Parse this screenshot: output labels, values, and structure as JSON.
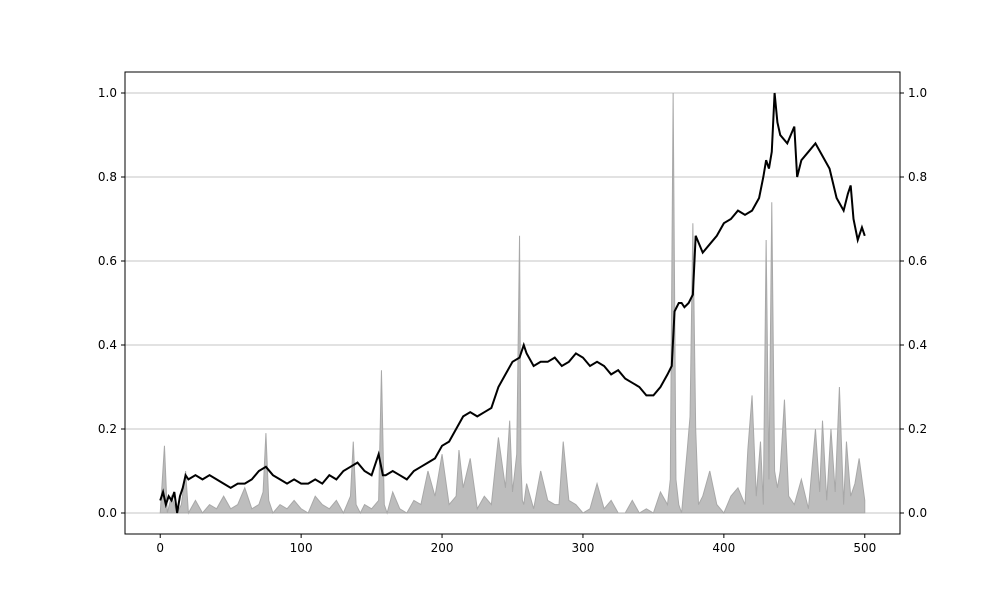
{
  "chart_data": {
    "type": "line",
    "title": "",
    "xlabel": "",
    "ylabel": "",
    "xlim": [
      -25,
      525
    ],
    "ylim": [
      -0.05,
      1.05
    ],
    "x_ticks": [
      0,
      100,
      200,
      300,
      400,
      500
    ],
    "x_tick_labels": [
      "0",
      "100",
      "200",
      "300",
      "400",
      "500"
    ],
    "y_ticks": [
      0.0,
      0.2,
      0.4,
      0.6,
      0.8,
      1.0
    ],
    "y_tick_labels": [
      "0.0",
      "0.2",
      "0.4",
      "0.6",
      "0.8",
      "1.0"
    ],
    "right_y_tick_labels": [
      "0.0",
      "0.2",
      "0.4",
      "0.6",
      "0.8",
      "1.0"
    ],
    "grid": "horizontal",
    "colors": {
      "line": "#000000",
      "area": "#bdbdbd",
      "area_edge": "#a8a8a8",
      "grid": "#b0b0b0"
    },
    "series": [
      {
        "kind": "line",
        "x": [
          0,
          2,
          4,
          6,
          8,
          10,
          12,
          14,
          16,
          18,
          20,
          25,
          30,
          35,
          40,
          45,
          50,
          55,
          60,
          65,
          70,
          75,
          80,
          85,
          90,
          95,
          100,
          105,
          110,
          115,
          120,
          125,
          130,
          135,
          140,
          145,
          150,
          155,
          158,
          160,
          165,
          170,
          175,
          180,
          185,
          190,
          195,
          200,
          205,
          210,
          215,
          220,
          225,
          230,
          235,
          240,
          245,
          250,
          255,
          258,
          260,
          265,
          270,
          275,
          280,
          285,
          290,
          295,
          300,
          305,
          310,
          315,
          320,
          325,
          330,
          335,
          340,
          345,
          350,
          355,
          360,
          363,
          365,
          368,
          370,
          372,
          375,
          378,
          380,
          385,
          390,
          395,
          400,
          405,
          410,
          415,
          420,
          425,
          428,
          430,
          432,
          434,
          436,
          438,
          440,
          445,
          450,
          452,
          455,
          460,
          465,
          470,
          475,
          480,
          485,
          488,
          490,
          492,
          495,
          498,
          500
        ],
        "values": [
          0.03,
          0.05,
          0.02,
          0.04,
          0.03,
          0.05,
          0.0,
          0.04,
          0.06,
          0.09,
          0.08,
          0.09,
          0.08,
          0.09,
          0.08,
          0.07,
          0.06,
          0.07,
          0.07,
          0.08,
          0.1,
          0.11,
          0.09,
          0.08,
          0.07,
          0.08,
          0.07,
          0.07,
          0.08,
          0.07,
          0.09,
          0.08,
          0.1,
          0.11,
          0.12,
          0.1,
          0.09,
          0.14,
          0.09,
          0.09,
          0.1,
          0.09,
          0.08,
          0.1,
          0.11,
          0.12,
          0.13,
          0.16,
          0.17,
          0.2,
          0.23,
          0.24,
          0.23,
          0.24,
          0.25,
          0.3,
          0.33,
          0.36,
          0.37,
          0.4,
          0.38,
          0.35,
          0.36,
          0.36,
          0.37,
          0.35,
          0.36,
          0.38,
          0.37,
          0.35,
          0.36,
          0.35,
          0.33,
          0.34,
          0.32,
          0.31,
          0.3,
          0.28,
          0.28,
          0.3,
          0.33,
          0.35,
          0.48,
          0.5,
          0.5,
          0.49,
          0.5,
          0.52,
          0.66,
          0.62,
          0.64,
          0.66,
          0.69,
          0.7,
          0.72,
          0.71,
          0.72,
          0.75,
          0.8,
          0.84,
          0.82,
          0.86,
          1.0,
          0.93,
          0.9,
          0.88,
          0.92,
          0.8,
          0.84,
          0.86,
          0.88,
          0.85,
          0.82,
          0.75,
          0.72,
          0.76,
          0.78,
          0.7,
          0.65,
          0.68,
          0.66
        ]
      },
      {
        "kind": "area",
        "x": [
          0,
          3,
          5,
          8,
          12,
          15,
          18,
          20,
          25,
          30,
          35,
          40,
          45,
          50,
          55,
          60,
          65,
          70,
          73,
          75,
          77,
          80,
          85,
          90,
          95,
          100,
          105,
          110,
          115,
          120,
          125,
          130,
          135,
          137,
          139,
          142,
          145,
          150,
          155,
          157,
          159,
          161,
          165,
          170,
          175,
          180,
          185,
          190,
          195,
          200,
          205,
          210,
          212,
          215,
          220,
          225,
          230,
          235,
          240,
          245,
          248,
          250,
          253,
          255,
          256,
          257,
          258,
          260,
          265,
          270,
          275,
          280,
          283,
          286,
          290,
          295,
          300,
          305,
          310,
          315,
          320,
          325,
          330,
          335,
          340,
          345,
          350,
          355,
          360,
          362,
          364,
          366,
          368,
          370,
          374,
          376,
          378,
          380,
          382,
          385,
          390,
          395,
          400,
          405,
          410,
          415,
          417,
          420,
          423,
          426,
          428,
          430,
          432,
          434,
          436,
          438,
          440,
          443,
          446,
          450,
          455,
          460,
          465,
          468,
          470,
          473,
          476,
          479,
          482,
          485,
          487,
          490,
          493,
          496,
          500
        ],
        "values": [
          0.0,
          0.16,
          0.0,
          0.04,
          0.0,
          0.02,
          0.1,
          0.0,
          0.03,
          0.0,
          0.02,
          0.01,
          0.04,
          0.01,
          0.02,
          0.06,
          0.01,
          0.02,
          0.05,
          0.19,
          0.03,
          0.0,
          0.02,
          0.01,
          0.03,
          0.01,
          0.0,
          0.04,
          0.02,
          0.01,
          0.03,
          0.0,
          0.04,
          0.17,
          0.02,
          0.0,
          0.02,
          0.01,
          0.03,
          0.34,
          0.02,
          0.0,
          0.05,
          0.01,
          0.0,
          0.03,
          0.02,
          0.1,
          0.04,
          0.14,
          0.02,
          0.04,
          0.15,
          0.06,
          0.13,
          0.01,
          0.04,
          0.02,
          0.18,
          0.06,
          0.22,
          0.05,
          0.14,
          0.66,
          0.12,
          0.03,
          0.02,
          0.07,
          0.01,
          0.1,
          0.03,
          0.02,
          0.02,
          0.17,
          0.03,
          0.02,
          0.0,
          0.01,
          0.07,
          0.01,
          0.03,
          0.0,
          0.0,
          0.03,
          0.0,
          0.01,
          0.0,
          0.05,
          0.02,
          0.08,
          1.0,
          0.08,
          0.02,
          0.0,
          0.15,
          0.23,
          0.69,
          0.2,
          0.02,
          0.04,
          0.1,
          0.02,
          0.0,
          0.04,
          0.06,
          0.02,
          0.15,
          0.28,
          0.04,
          0.17,
          0.02,
          0.65,
          0.08,
          0.74,
          0.1,
          0.06,
          0.1,
          0.27,
          0.04,
          0.02,
          0.08,
          0.01,
          0.2,
          0.05,
          0.22,
          0.03,
          0.2,
          0.05,
          0.3,
          0.02,
          0.17,
          0.04,
          0.07,
          0.13,
          0.03
        ]
      }
    ]
  }
}
